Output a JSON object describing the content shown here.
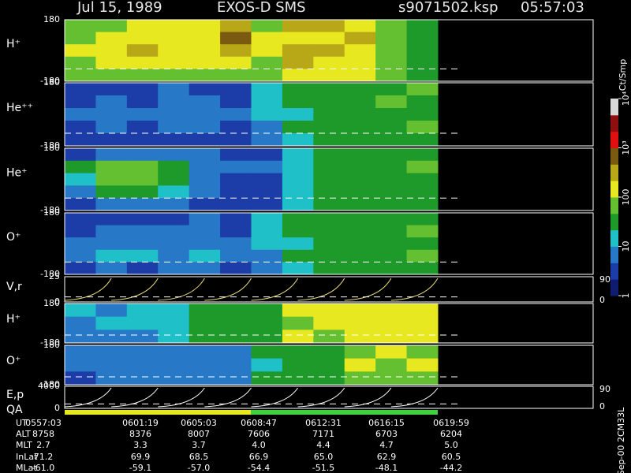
{
  "header": {
    "date": "Jul 15, 1989",
    "instrument": "EXOS-D SMS",
    "file": "s9071502.ksp",
    "time": "05:57:03"
  },
  "colorbar": {
    "label": "Ct/Smp",
    "lim": [
      0,
      4
    ],
    "colors": [
      "#101c70",
      "#1c3ca8",
      "#2878c8",
      "#20c0c8",
      "#1e9a2a",
      "#64c030",
      "#e8e820",
      "#b8a818",
      "#7a5a10",
      "#e01010",
      "#8c1010",
      "#d8d8d8"
    ],
    "ticks": [
      {
        "value": 0,
        "label": "1"
      },
      {
        "value": 1,
        "label": "10"
      },
      {
        "value": 2,
        "label": "100"
      },
      {
        "value": 3,
        "label": "10³"
      },
      {
        "value": 4,
        "label": "10⁴"
      }
    ]
  },
  "panels": [
    {
      "type": "heatmap",
      "label": "H⁺",
      "ylim": [
        -180,
        180
      ],
      "yticks": [
        -180,
        180
      ],
      "values": [
        [
          1.8,
          1.9,
          2.1,
          2.0,
          2.2,
          2.4,
          1.9,
          2.4,
          2.4,
          2.3,
          1.7,
          1.6
        ],
        [
          1.9,
          2.1,
          2.2,
          2.1,
          2.3,
          2.9,
          2.0,
          2.3,
          2.2,
          2.4,
          1.8,
          1.6
        ],
        [
          2.0,
          2.2,
          2.4,
          2.1,
          2.2,
          2.6,
          2.1,
          2.4,
          2.5,
          2.3,
          1.7,
          1.5
        ],
        [
          1.9,
          2.0,
          2.2,
          2.0,
          2.1,
          2.2,
          1.9,
          2.4,
          2.3,
          2.2,
          1.8,
          1.6
        ],
        [
          1.7,
          1.8,
          1.9,
          1.8,
          1.9,
          1.9,
          1.8,
          2.3,
          2.2,
          2.1,
          1.7,
          1.5
        ]
      ]
    },
    {
      "type": "heatmap",
      "label": "He⁺⁺",
      "ylim": [
        -180,
        180
      ],
      "yticks": [
        -180,
        180
      ],
      "values": [
        [
          0.5,
          0.6,
          0.5,
          0.7,
          0.6,
          0.5,
          1.0,
          1.4,
          1.5,
          1.6,
          1.6,
          1.7
        ],
        [
          0.6,
          0.7,
          0.6,
          0.8,
          0.7,
          0.6,
          1.1,
          1.4,
          1.5,
          1.6,
          1.7,
          1.6
        ],
        [
          0.7,
          0.8,
          0.7,
          0.8,
          0.8,
          0.7,
          1.0,
          1.3,
          1.5,
          1.5,
          1.6,
          1.6
        ],
        [
          0.6,
          0.7,
          0.6,
          0.7,
          0.7,
          0.6,
          0.9,
          1.4,
          1.4,
          1.5,
          1.6,
          1.7
        ],
        [
          0.5,
          0.5,
          0.5,
          0.6,
          0.6,
          0.5,
          0.9,
          1.3,
          1.4,
          1.5,
          1.5,
          1.6
        ]
      ]
    },
    {
      "type": "heatmap",
      "label": "He⁺",
      "ylim": [
        -180,
        180
      ],
      "yticks": [
        -180,
        180
      ],
      "values": [
        [
          0.6,
          0.7,
          0.7,
          0.8,
          0.7,
          0.6,
          0.6,
          1.1,
          1.5,
          1.6,
          1.6,
          1.6
        ],
        [
          1.4,
          1.8,
          1.9,
          1.5,
          0.8,
          0.7,
          0.7,
          1.2,
          1.5,
          1.6,
          1.6,
          1.7
        ],
        [
          1.3,
          1.9,
          1.9,
          1.6,
          0.7,
          0.6,
          0.6,
          1.1,
          1.4,
          1.5,
          1.6,
          1.6
        ],
        [
          0.8,
          1.4,
          1.5,
          1.2,
          0.7,
          0.6,
          0.6,
          1.0,
          1.4,
          1.5,
          1.5,
          1.6
        ],
        [
          0.6,
          0.7,
          0.7,
          0.8,
          0.6,
          0.5,
          0.6,
          1.0,
          1.4,
          1.4,
          1.5,
          1.6
        ]
      ]
    },
    {
      "type": "heatmap",
      "label": "O⁺",
      "ylim": [
        -180,
        180
      ],
      "yticks": [
        -180,
        180
      ],
      "values": [
        [
          0.5,
          0.6,
          0.6,
          0.6,
          0.7,
          0.6,
          1.0,
          1.4,
          1.5,
          1.6,
          1.6,
          1.6
        ],
        [
          0.6,
          0.7,
          0.7,
          0.8,
          0.7,
          0.6,
          1.1,
          1.4,
          1.5,
          1.6,
          1.6,
          1.7
        ],
        [
          0.7,
          0.8,
          0.7,
          0.8,
          0.8,
          0.7,
          1.0,
          1.3,
          1.5,
          1.5,
          1.6,
          1.6
        ],
        [
          0.8,
          1.2,
          1.1,
          0.9,
          1.0,
          0.7,
          0.9,
          1.4,
          1.4,
          1.5,
          1.6,
          1.7
        ],
        [
          0.6,
          0.7,
          0.6,
          0.7,
          0.7,
          0.6,
          0.9,
          1.3,
          1.4,
          1.5,
          1.5,
          1.6
        ]
      ]
    },
    {
      "type": "sawtooth",
      "label": "V,r",
      "ylim": [
        0,
        25
      ],
      "yticks": [
        0,
        25
      ],
      "y2lim": [
        0,
        90
      ],
      "y2ticks": [
        0,
        90
      ]
    },
    {
      "type": "heatmap",
      "label": "H⁺",
      "ylim": [
        -180,
        180
      ],
      "yticks": [
        -180,
        180
      ],
      "values": [
        [
          1.0,
          0.9,
          1.1,
          1.2,
          1.5,
          1.6,
          1.5,
          2.0,
          2.1,
          2.0,
          2.1,
          2.0
        ],
        [
          0.9,
          1.0,
          1.0,
          1.1,
          1.6,
          1.5,
          1.6,
          1.9,
          2.0,
          2.1,
          2.0,
          2.1
        ],
        [
          0.8,
          0.9,
          0.9,
          1.0,
          1.4,
          1.5,
          1.4,
          2.0,
          1.9,
          2.0,
          2.1,
          2.0
        ]
      ]
    },
    {
      "type": "heatmap",
      "label": "O⁺",
      "ylim": [
        -180,
        180
      ],
      "yticks": [
        -180,
        180
      ],
      "values": [
        [
          0.8,
          0.7,
          0.9,
          0.8,
          0.9,
          0.8,
          1.4,
          1.5,
          1.5,
          1.9,
          2.0,
          1.9
        ],
        [
          0.7,
          0.9,
          0.8,
          0.9,
          0.8,
          0.9,
          1.3,
          1.6,
          1.4,
          2.0,
          1.9,
          2.0
        ],
        [
          0.6,
          0.8,
          0.7,
          0.8,
          0.7,
          0.8,
          1.4,
          1.5,
          1.5,
          1.8,
          1.9,
          1.9
        ]
      ]
    },
    {
      "type": "sawtooth",
      "label": "E,p",
      "ylim": [
        0,
        4000
      ],
      "yticks": [
        0,
        4000
      ],
      "y2lim": [
        0,
        90
      ],
      "y2ticks": [
        0,
        90
      ]
    }
  ],
  "qa_label": "QA",
  "table": {
    "row_labels": [
      "UT",
      "ALT",
      "MLT",
      "InLat",
      "MLat"
    ],
    "rows": [
      [
        "0557:03",
        "0601:19",
        "0605:03",
        "0608:47",
        "0612:31",
        "0616:15",
        "0619:59"
      ],
      [
        "8758",
        "8376",
        "8007",
        "7606",
        "7171",
        "6703",
        "6204"
      ],
      [
        "2.7",
        "3.3",
        "3.7",
        "4.0",
        "4.4",
        "4.7",
        "5.0"
      ],
      [
        "71.2",
        "69.9",
        "68.5",
        "66.9",
        "65.0",
        "62.9",
        "60.5"
      ],
      [
        "-61.0",
        "-59.1",
        "-57.0",
        "-54.4",
        "-51.5",
        "-48.1",
        "-44.2"
      ]
    ]
  },
  "footer": "Sep-00 2CM33L"
}
